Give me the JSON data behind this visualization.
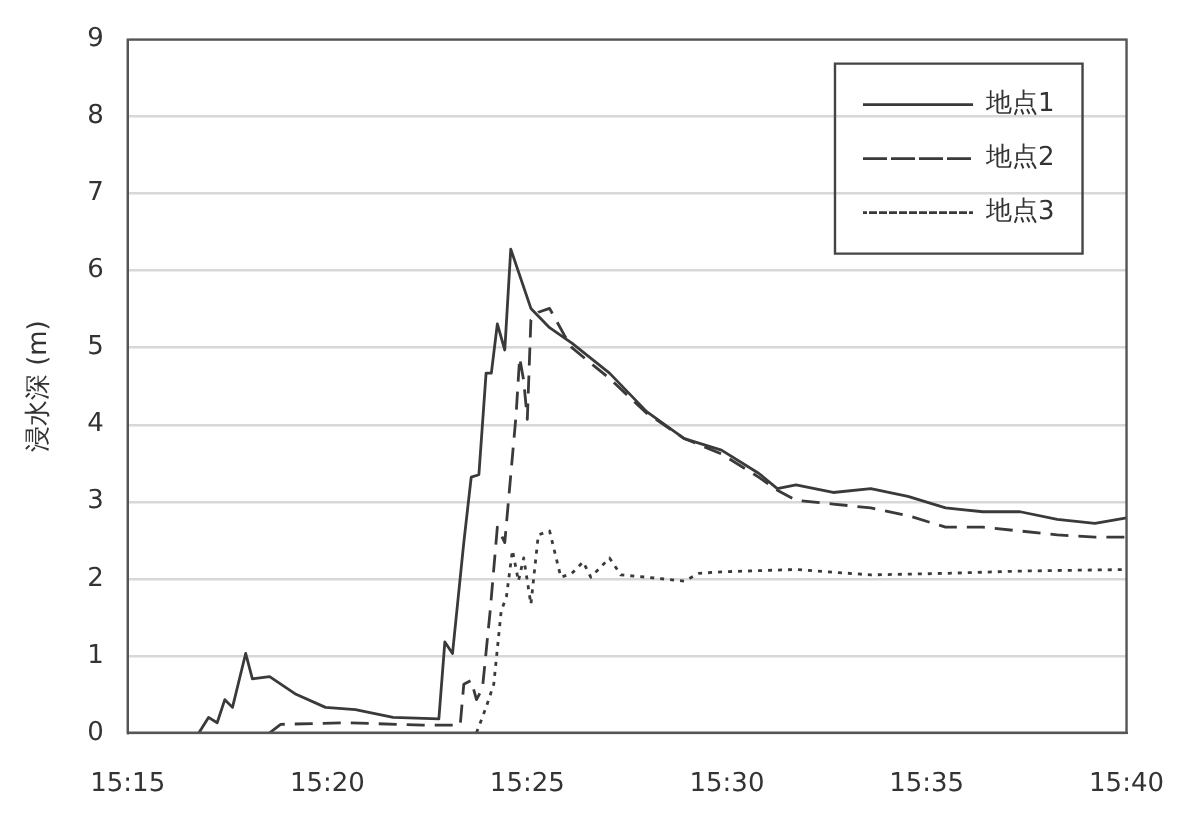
{
  "chart_data": {
    "type": "line",
    "ylabel": "浸水深 (m)",
    "xlim": [
      15.25,
      15.6667
    ],
    "xticks": [
      {
        "value": 15.25,
        "label": "15:15"
      },
      {
        "value": 15.3333,
        "label": "15:20"
      },
      {
        "value": 15.4167,
        "label": "15:25"
      },
      {
        "value": 15.5,
        "label": "15:30"
      },
      {
        "value": 15.5833,
        "label": "15:35"
      },
      {
        "value": 15.6667,
        "label": "15:40"
      }
    ],
    "ylim": [
      0,
      9
    ],
    "yticks": [
      0,
      1,
      2,
      3,
      4,
      5,
      6,
      7,
      8,
      9
    ],
    "grid": "y",
    "legend": "top right",
    "marker": "none",
    "series": [
      {
        "name": "地点1",
        "color": "#3a3a3a",
        "line_style": "solid",
        "x": [
          15.2797,
          15.2837,
          15.2873,
          15.2905,
          15.2937,
          15.2992,
          15.302,
          15.3092,
          15.3202,
          15.3325,
          15.345,
          15.3607,
          15.3798,
          15.3823,
          15.3855,
          15.3902,
          15.3933,
          15.3965,
          15.3995,
          15.4017,
          15.4042,
          15.4073,
          15.4098,
          15.4182,
          15.426,
          15.4353,
          15.451,
          15.4665,
          15.4822,
          15.4977,
          15.5132,
          15.521,
          15.5288,
          15.5443,
          15.56,
          15.5755,
          15.5912,
          15.6067,
          15.6223,
          15.6378,
          15.6535,
          15.6667
        ],
        "values": [
          0,
          0.2,
          0.13,
          0.43,
          0.33,
          1.03,
          0.7,
          0.73,
          0.5,
          0.33,
          0.3,
          0.2,
          0.18,
          1.18,
          1.03,
          2.47,
          3.32,
          3.35,
          4.67,
          4.67,
          5.31,
          4.97,
          6.28,
          5.51,
          5.26,
          5.06,
          4.67,
          4.17,
          3.82,
          3.67,
          3.37,
          3.17,
          3.22,
          3.12,
          3.17,
          3.07,
          2.92,
          2.87,
          2.87,
          2.77,
          2.72,
          2.79
        ]
      },
      {
        "name": "地点2",
        "color": "#3a3a3a",
        "line_style": "dashed",
        "x": [
          15.3092,
          15.3138,
          15.3418,
          15.373,
          15.3887,
          15.3902,
          15.3933,
          15.3955,
          15.398,
          15.4012,
          15.4042,
          15.4073,
          15.412,
          15.4135,
          15.4152,
          15.4167,
          15.4182,
          15.4213,
          15.426,
          15.4322,
          15.4353,
          15.451,
          15.4665,
          15.4822,
          15.4977,
          15.5132,
          15.521,
          15.5288,
          15.5443,
          15.56,
          15.5755,
          15.5912,
          15.6067,
          15.6223,
          15.6378,
          15.6535,
          15.6667
        ],
        "values": [
          0,
          0.11,
          0.13,
          0.1,
          0.1,
          0.63,
          0.68,
          0.43,
          0.58,
          1.58,
          2.67,
          2.47,
          4.12,
          4.87,
          4.57,
          4.07,
          5.36,
          5.46,
          5.51,
          5.16,
          5.0,
          4.6,
          4.15,
          3.82,
          3.62,
          3.32,
          3.15,
          3.02,
          2.97,
          2.92,
          2.82,
          2.67,
          2.67,
          2.62,
          2.57,
          2.54,
          2.54
        ]
      },
      {
        "name": "地点3",
        "color": "#3a3a3a",
        "line_style": "dotted",
        "x": [
          15.3955,
          15.3995,
          15.4027,
          15.4058,
          15.408,
          15.4105,
          15.413,
          15.4152,
          15.4182,
          15.4213,
          15.426,
          15.4307,
          15.4353,
          15.44,
          15.4432,
          15.451,
          15.4557,
          15.4665,
          15.4822,
          15.4883,
          15.4977,
          15.5288,
          15.56,
          15.5912,
          15.6223,
          15.6667
        ],
        "values": [
          0,
          0.33,
          0.63,
          1.58,
          1.77,
          2.37,
          1.97,
          2.27,
          1.67,
          2.57,
          2.62,
          2.02,
          2.07,
          2.22,
          2.02,
          2.27,
          2.05,
          2.02,
          1.97,
          2.07,
          2.09,
          2.12,
          2.05,
          2.07,
          2.1,
          2.12
        ]
      }
    ]
  }
}
